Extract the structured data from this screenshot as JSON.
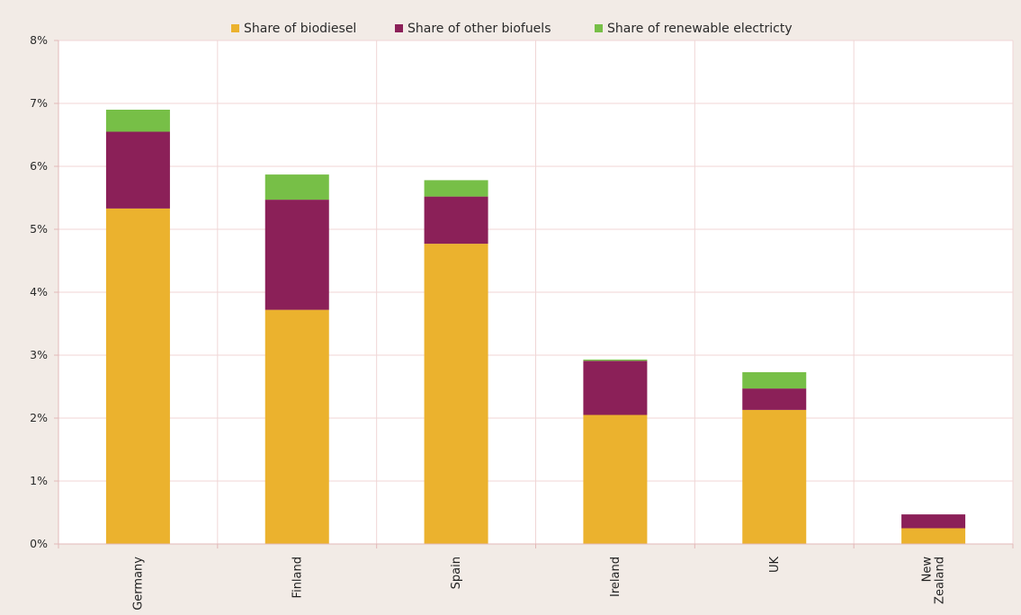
{
  "chart_data": {
    "type": "bar",
    "stacked": true,
    "categories": [
      "Germany",
      "Finland",
      "Spain",
      "Ireland",
      "UK",
      "New Zealand"
    ],
    "category_label_lines": [
      [
        "Germany"
      ],
      [
        "Finland"
      ],
      [
        "Spain"
      ],
      [
        "Ireland"
      ],
      [
        "UK"
      ],
      [
        "New",
        "Zealand"
      ]
    ],
    "series": [
      {
        "name": "Share of biodiesel",
        "color": "#ebb22e",
        "values": [
          5.33,
          3.72,
          4.77,
          2.05,
          2.13,
          0.25
        ]
      },
      {
        "name": "Share of other biofuels",
        "color": "#8b2058",
        "values": [
          1.22,
          1.75,
          0.75,
          0.86,
          0.34,
          0.22
        ]
      },
      {
        "name": "Share of renewable electricty",
        "color": "#77bf47",
        "values": [
          0.35,
          0.4,
          0.26,
          0.02,
          0.26,
          0
        ]
      }
    ],
    "ylim": [
      0,
      8
    ],
    "yticks": [
      {
        "value": 0,
        "label": "0%"
      },
      {
        "value": 1,
        "label": "1%"
      },
      {
        "value": 2,
        "label": "2%"
      },
      {
        "value": 3,
        "label": "3%"
      },
      {
        "value": 4,
        "label": "4%"
      },
      {
        "value": 5,
        "label": "5%"
      },
      {
        "value": 6,
        "label": "6%"
      },
      {
        "value": 7,
        "label": "7%"
      },
      {
        "value": 8,
        "label": "8%"
      }
    ],
    "grid": true,
    "legend_position": "top-center",
    "colors": {
      "background": "#f2ebe6",
      "plot_background": "#ffffff",
      "gridline": "#f0d6d6",
      "axis": "#e3b8b8"
    }
  }
}
